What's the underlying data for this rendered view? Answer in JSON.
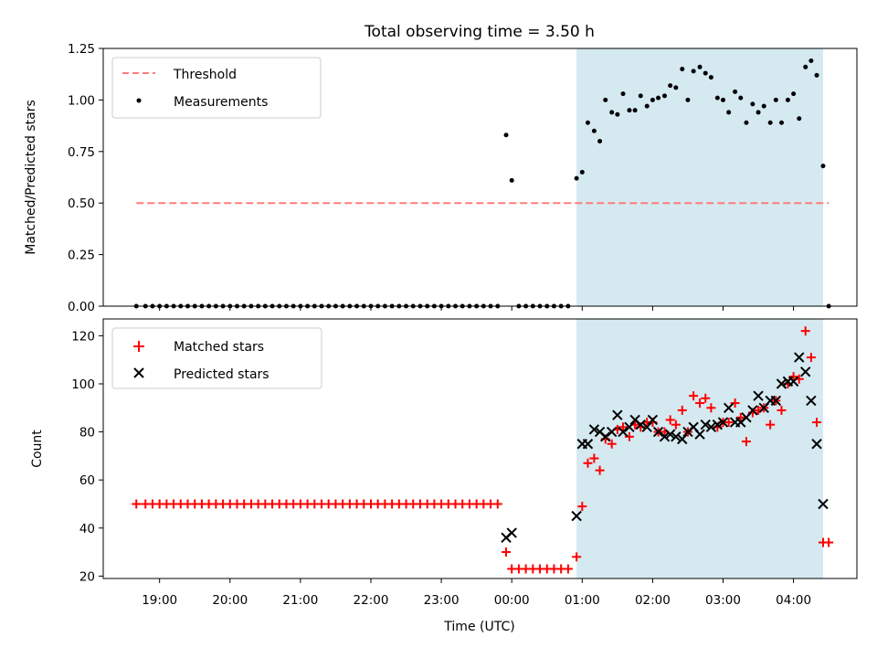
{
  "chart_data": {
    "type": "scatter",
    "title": "Total observing time = 3.50 h",
    "xlabel": "Time (UTC)",
    "x_ticks": [
      "19:00",
      "20:00",
      "21:00",
      "22:00",
      "23:00",
      "00:00",
      "01:00",
      "02:00",
      "03:00",
      "04:00"
    ],
    "x_range_hours": [
      18.2,
      28.9
    ],
    "observing_window_hours": [
      24.92,
      28.42
    ],
    "colors": {
      "window": "#d5e9f1",
      "threshold": "#ff7b7b",
      "measurements": "#000000",
      "matched": "#ff0000",
      "predicted": "#000000"
    },
    "panels": [
      {
        "ylabel": "Matched/Predicted stars",
        "ylim": [
          0,
          1.25
        ],
        "y_ticks": [
          "0.00",
          "0.25",
          "0.50",
          "0.75",
          "1.00",
          "1.25"
        ],
        "legend": [
          "Threshold",
          "Measurements"
        ],
        "threshold": {
          "name": "Threshold",
          "y": 0.5,
          "x": [
            18.67,
            28.5
          ]
        }
      },
      {
        "ylabel": "Count",
        "ylim": [
          19,
          127
        ],
        "y_ticks": [
          "20",
          "40",
          "60",
          "80",
          "100",
          "120"
        ],
        "legend": [
          "Matched stars",
          "Predicted stars"
        ]
      }
    ],
    "series": [
      {
        "name": "Measurements",
        "panel": 0,
        "marker": "dot",
        "points": [
          [
            18.67,
            0
          ],
          [
            18.8,
            0
          ],
          [
            18.9,
            0
          ],
          [
            19.0,
            0
          ],
          [
            19.1,
            0
          ],
          [
            19.2,
            0
          ],
          [
            19.3,
            0
          ],
          [
            19.4,
            0
          ],
          [
            19.5,
            0
          ],
          [
            19.6,
            0
          ],
          [
            19.7,
            0
          ],
          [
            19.8,
            0
          ],
          [
            19.9,
            0
          ],
          [
            20.0,
            0
          ],
          [
            20.1,
            0
          ],
          [
            20.2,
            0
          ],
          [
            20.3,
            0
          ],
          [
            20.4,
            0
          ],
          [
            20.5,
            0
          ],
          [
            20.6,
            0
          ],
          [
            20.7,
            0
          ],
          [
            20.8,
            0
          ],
          [
            20.9,
            0
          ],
          [
            21.0,
            0
          ],
          [
            21.1,
            0
          ],
          [
            21.2,
            0
          ],
          [
            21.3,
            0
          ],
          [
            21.4,
            0
          ],
          [
            21.5,
            0
          ],
          [
            21.6,
            0
          ],
          [
            21.7,
            0
          ],
          [
            21.8,
            0
          ],
          [
            21.9,
            0
          ],
          [
            22.0,
            0
          ],
          [
            22.1,
            0
          ],
          [
            22.2,
            0
          ],
          [
            22.3,
            0
          ],
          [
            22.4,
            0
          ],
          [
            22.5,
            0
          ],
          [
            22.6,
            0
          ],
          [
            22.7,
            0
          ],
          [
            22.8,
            0
          ],
          [
            22.9,
            0
          ],
          [
            23.0,
            0
          ],
          [
            23.1,
            0
          ],
          [
            23.2,
            0
          ],
          [
            23.3,
            0
          ],
          [
            23.4,
            0
          ],
          [
            23.5,
            0
          ],
          [
            23.6,
            0
          ],
          [
            23.7,
            0
          ],
          [
            23.8,
            0
          ],
          [
            23.92,
            0.83
          ],
          [
            24.0,
            0.61
          ],
          [
            24.1,
            0
          ],
          [
            24.2,
            0
          ],
          [
            24.3,
            0
          ],
          [
            24.4,
            0
          ],
          [
            24.5,
            0
          ],
          [
            24.6,
            0
          ],
          [
            24.7,
            0
          ],
          [
            24.8,
            0
          ],
          [
            24.92,
            0.62
          ],
          [
            25.0,
            0.65
          ],
          [
            25.08,
            0.89
          ],
          [
            25.17,
            0.85
          ],
          [
            25.25,
            0.8
          ],
          [
            25.33,
            1.0
          ],
          [
            25.42,
            0.94
          ],
          [
            25.5,
            0.93
          ],
          [
            25.58,
            1.03
          ],
          [
            25.67,
            0.95
          ],
          [
            25.75,
            0.95
          ],
          [
            25.83,
            1.02
          ],
          [
            25.92,
            0.97
          ],
          [
            26.0,
            1.0
          ],
          [
            26.08,
            1.01
          ],
          [
            26.17,
            1.02
          ],
          [
            26.25,
            1.07
          ],
          [
            26.33,
            1.06
          ],
          [
            26.42,
            1.15
          ],
          [
            26.5,
            1.0
          ],
          [
            26.58,
            1.14
          ],
          [
            26.67,
            1.16
          ],
          [
            26.75,
            1.13
          ],
          [
            26.83,
            1.11
          ],
          [
            26.92,
            1.01
          ],
          [
            27.0,
            1.0
          ],
          [
            27.08,
            0.94
          ],
          [
            27.17,
            1.04
          ],
          [
            27.25,
            1.01
          ],
          [
            27.33,
            0.89
          ],
          [
            27.42,
            0.98
          ],
          [
            27.5,
            0.94
          ],
          [
            27.58,
            0.97
          ],
          [
            27.67,
            0.89
          ],
          [
            27.75,
            1.0
          ],
          [
            27.83,
            0.89
          ],
          [
            27.92,
            1.0
          ],
          [
            28.0,
            1.03
          ],
          [
            28.08,
            0.91
          ],
          [
            28.17,
            1.16
          ],
          [
            28.25,
            1.19
          ],
          [
            28.33,
            1.12
          ],
          [
            28.42,
            0.68
          ],
          [
            28.5,
            0
          ]
        ]
      },
      {
        "name": "Matched stars",
        "panel": 1,
        "marker": "plus",
        "points": [
          [
            18.67,
            50
          ],
          [
            18.8,
            50
          ],
          [
            18.9,
            50
          ],
          [
            19.0,
            50
          ],
          [
            19.1,
            50
          ],
          [
            19.2,
            50
          ],
          [
            19.3,
            50
          ],
          [
            19.4,
            50
          ],
          [
            19.5,
            50
          ],
          [
            19.6,
            50
          ],
          [
            19.7,
            50
          ],
          [
            19.8,
            50
          ],
          [
            19.9,
            50
          ],
          [
            20.0,
            50
          ],
          [
            20.1,
            50
          ],
          [
            20.2,
            50
          ],
          [
            20.3,
            50
          ],
          [
            20.4,
            50
          ],
          [
            20.5,
            50
          ],
          [
            20.6,
            50
          ],
          [
            20.7,
            50
          ],
          [
            20.8,
            50
          ],
          [
            20.9,
            50
          ],
          [
            21.0,
            50
          ],
          [
            21.1,
            50
          ],
          [
            21.2,
            50
          ],
          [
            21.3,
            50
          ],
          [
            21.4,
            50
          ],
          [
            21.5,
            50
          ],
          [
            21.6,
            50
          ],
          [
            21.7,
            50
          ],
          [
            21.8,
            50
          ],
          [
            21.9,
            50
          ],
          [
            22.0,
            50
          ],
          [
            22.1,
            50
          ],
          [
            22.2,
            50
          ],
          [
            22.3,
            50
          ],
          [
            22.4,
            50
          ],
          [
            22.5,
            50
          ],
          [
            22.6,
            50
          ],
          [
            22.7,
            50
          ],
          [
            22.8,
            50
          ],
          [
            22.9,
            50
          ],
          [
            23.0,
            50
          ],
          [
            23.1,
            50
          ],
          [
            23.2,
            50
          ],
          [
            23.3,
            50
          ],
          [
            23.4,
            50
          ],
          [
            23.5,
            50
          ],
          [
            23.6,
            50
          ],
          [
            23.7,
            50
          ],
          [
            23.8,
            50
          ],
          [
            23.92,
            30
          ],
          [
            24.0,
            23
          ],
          [
            24.1,
            23
          ],
          [
            24.2,
            23
          ],
          [
            24.3,
            23
          ],
          [
            24.4,
            23
          ],
          [
            24.5,
            23
          ],
          [
            24.6,
            23
          ],
          [
            24.7,
            23
          ],
          [
            24.8,
            23
          ],
          [
            24.92,
            28
          ],
          [
            25.0,
            49
          ],
          [
            25.08,
            67
          ],
          [
            25.17,
            69
          ],
          [
            25.25,
            64
          ],
          [
            25.33,
            77
          ],
          [
            25.42,
            75
          ],
          [
            25.5,
            81
          ],
          [
            25.58,
            82
          ],
          [
            25.67,
            78
          ],
          [
            25.75,
            83
          ],
          [
            25.83,
            82
          ],
          [
            25.92,
            84
          ],
          [
            26.0,
            84
          ],
          [
            26.08,
            80
          ],
          [
            26.17,
            80
          ],
          [
            26.25,
            85
          ],
          [
            26.33,
            83
          ],
          [
            26.42,
            89
          ],
          [
            26.5,
            80
          ],
          [
            26.58,
            95
          ],
          [
            26.67,
            92
          ],
          [
            26.75,
            94
          ],
          [
            26.83,
            90
          ],
          [
            26.92,
            82
          ],
          [
            27.0,
            84
          ],
          [
            27.08,
            84
          ],
          [
            27.17,
            92
          ],
          [
            27.25,
            86
          ],
          [
            27.33,
            76
          ],
          [
            27.42,
            88
          ],
          [
            27.5,
            89
          ],
          [
            27.58,
            90
          ],
          [
            27.67,
            83
          ],
          [
            27.75,
            93
          ],
          [
            27.83,
            89
          ],
          [
            27.92,
            100
          ],
          [
            28.0,
            103
          ],
          [
            28.08,
            102
          ],
          [
            28.17,
            122
          ],
          [
            28.25,
            111
          ],
          [
            28.33,
            84
          ],
          [
            28.42,
            34
          ],
          [
            28.5,
            34
          ]
        ]
      },
      {
        "name": "Predicted stars",
        "panel": 1,
        "marker": "x",
        "points": [
          [
            23.92,
            36
          ],
          [
            24.0,
            38
          ],
          [
            24.92,
            45
          ],
          [
            25.0,
            75
          ],
          [
            25.08,
            75
          ],
          [
            25.17,
            81
          ],
          [
            25.25,
            80
          ],
          [
            25.33,
            78
          ],
          [
            25.42,
            80
          ],
          [
            25.5,
            87
          ],
          [
            25.58,
            80
          ],
          [
            25.67,
            82
          ],
          [
            25.75,
            85
          ],
          [
            25.83,
            83
          ],
          [
            25.92,
            82
          ],
          [
            26.0,
            85
          ],
          [
            26.08,
            80
          ],
          [
            26.17,
            78
          ],
          [
            26.25,
            79
          ],
          [
            26.33,
            78
          ],
          [
            26.42,
            77
          ],
          [
            26.5,
            80
          ],
          [
            26.58,
            82
          ],
          [
            26.67,
            79
          ],
          [
            26.75,
            83
          ],
          [
            26.83,
            82
          ],
          [
            26.92,
            83
          ],
          [
            27.0,
            84
          ],
          [
            27.08,
            90
          ],
          [
            27.17,
            84
          ],
          [
            27.25,
            84
          ],
          [
            27.33,
            86
          ],
          [
            27.42,
            89
          ],
          [
            27.5,
            95
          ],
          [
            27.58,
            90
          ],
          [
            27.67,
            93
          ],
          [
            27.75,
            93
          ],
          [
            27.83,
            100
          ],
          [
            27.92,
            101
          ],
          [
            28.0,
            101
          ],
          [
            28.08,
            111
          ],
          [
            28.17,
            105
          ],
          [
            28.25,
            93
          ],
          [
            28.33,
            75
          ],
          [
            28.42,
            50
          ]
        ]
      }
    ]
  }
}
